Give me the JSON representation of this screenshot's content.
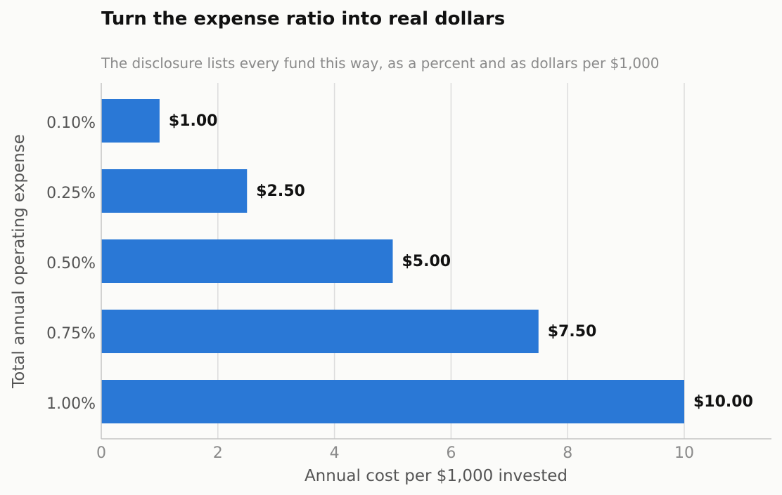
{
  "chart_data": {
    "type": "bar",
    "orientation": "horizontal",
    "title": "Turn the expense ratio into real dollars",
    "subtitle": "The disclosure lists every fund this way, as a percent and as dollars per $1,000",
    "xlabel": "Annual cost per $1,000 invested",
    "ylabel": "Total annual operating expense",
    "categories": [
      "0.10%",
      "0.25%",
      "0.50%",
      "0.75%",
      "1.00%"
    ],
    "values": [
      1.0,
      2.5,
      5.0,
      7.5,
      10.0
    ],
    "data_labels": [
      "$1.00",
      "$2.50",
      "$5.00",
      "$7.50",
      "$10.00"
    ],
    "xlim": [
      0,
      11.5
    ],
    "xticks": [
      0,
      2,
      4,
      6,
      8,
      10
    ],
    "grid": "vertical",
    "bar_color": "#2a78d6",
    "legend": "none"
  }
}
